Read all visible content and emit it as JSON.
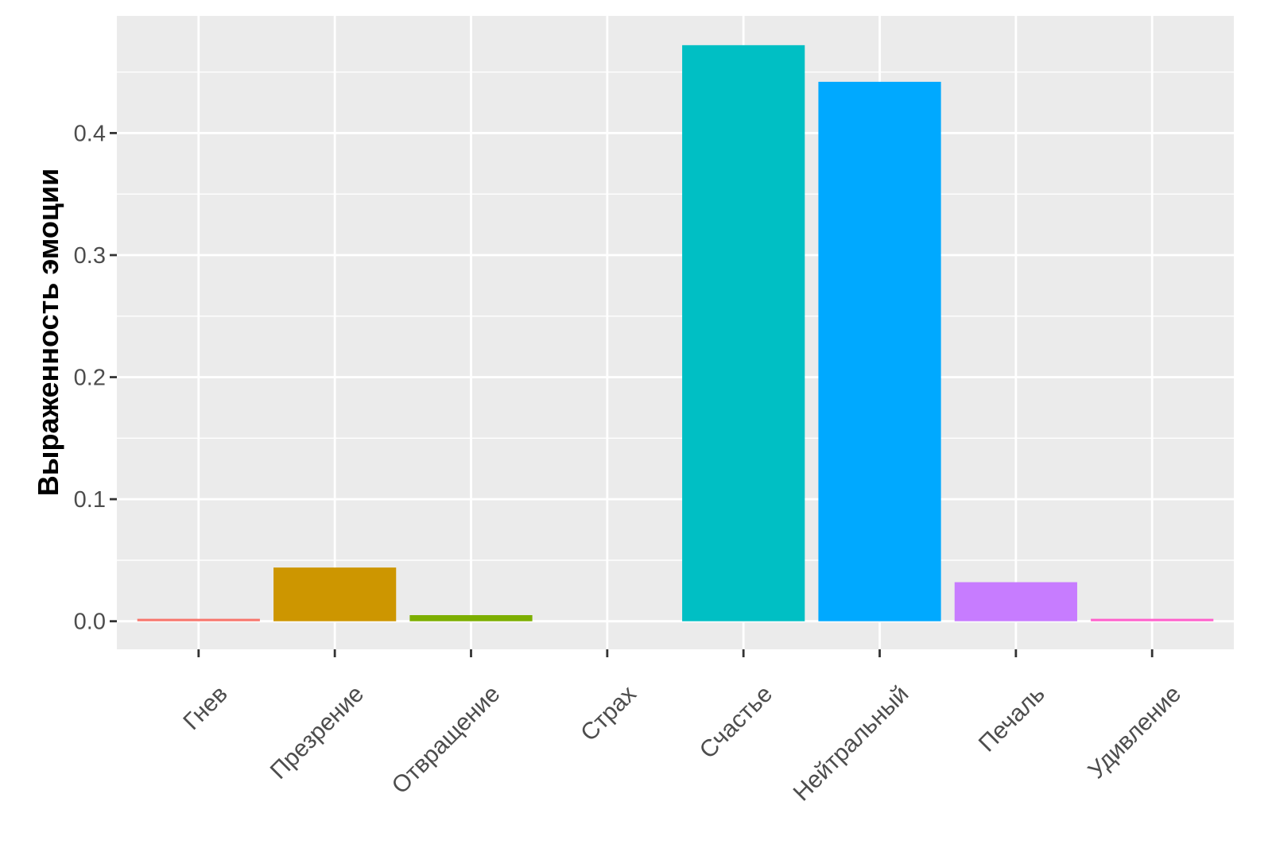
{
  "chart_data": {
    "type": "bar",
    "categories": [
      "Гнев",
      "Презрение",
      "Отвращение",
      "Страх",
      "Счастье",
      "Нейтральный",
      "Печаль",
      "Удивление"
    ],
    "values": [
      0.002,
      0.044,
      0.005,
      0.0,
      0.472,
      0.442,
      0.032,
      0.002
    ],
    "colors": [
      "#F8766D",
      "#CD9600",
      "#7CAE00",
      "#00BE67",
      "#00BFC4",
      "#00A9FF",
      "#C77CFF",
      "#FF61CC"
    ],
    "title": "",
    "xlabel": "",
    "ylabel": "Выраженность эмоции",
    "ylim": [
      -0.023,
      0.496
    ],
    "yticks": [
      "0.0",
      "0.1",
      "0.2",
      "0.3",
      "0.4"
    ],
    "ytick_values": [
      0.0,
      0.1,
      0.2,
      0.3,
      0.4
    ],
    "grid": true,
    "legend": "none"
  }
}
